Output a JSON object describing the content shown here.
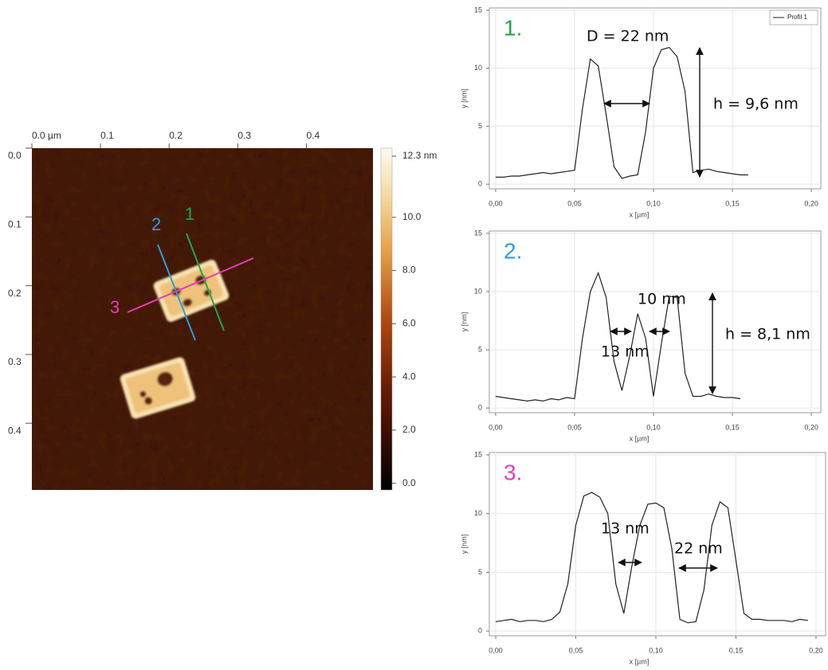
{
  "chart_data": [
    {
      "type": "image",
      "xlim": [
        0,
        0.497
      ],
      "ylim": [
        0,
        0.497
      ],
      "xticks": [
        {
          "value": 0,
          "label": "0.0 µm"
        },
        0.1,
        0.2,
        0.3,
        0.4
      ],
      "yticks": [
        {
          "value": 0,
          "label": "0.0"
        },
        0.1,
        0.2,
        0.3,
        0.4
      ],
      "annotations": [
        "1",
        "2",
        "3"
      ],
      "line_colors": [
        "#1fa64a",
        "#2a9fd8",
        "#e83cb4"
      ],
      "colorbar": {
        "lim": [
          -0.25,
          12.6
        ],
        "ticks": [
          {
            "value": 0,
            "label": "0.0"
          },
          {
            "value": 2,
            "label": "2.0"
          },
          {
            "value": 4,
            "label": "4.0"
          },
          {
            "value": 6,
            "label": "6.0"
          },
          {
            "value": 8,
            "label": "8.0"
          },
          {
            "value": 10,
            "label": "10.0"
          },
          {
            "value": 12.3,
            "label": "12.3 nm"
          }
        ]
      }
    },
    {
      "type": "line",
      "title": "1.",
      "title_color": "#1fa64a",
      "xlabel": "x [µm]",
      "ylabel": "y [nm]",
      "x": [
        0,
        0.005,
        0.01,
        0.015,
        0.02,
        0.025,
        0.03,
        0.035,
        0.04,
        0.045,
        0.05,
        0.055,
        0.06,
        0.065,
        0.07,
        0.075,
        0.08,
        0.085,
        0.09,
        0.095,
        0.1,
        0.105,
        0.11,
        0.115,
        0.12,
        0.125,
        0.13,
        0.135,
        0.14,
        0.145,
        0.15,
        0.155,
        0.16
      ],
      "series": [
        {
          "name": "Profil 1",
          "color": "#222222",
          "values": [
            0.6,
            0.6,
            0.7,
            0.7,
            0.8,
            0.9,
            1.0,
            0.9,
            1.0,
            1.1,
            1.2,
            6.5,
            10.8,
            10.2,
            6.0,
            1.5,
            0.5,
            0.7,
            0.8,
            4.5,
            10.0,
            11.6,
            11.8,
            11.0,
            8.0,
            1.0,
            1.2,
            1.3,
            1.1,
            1.0,
            0.9,
            0.8,
            0.8
          ]
        }
      ],
      "xlim": [
        -0.004,
        0.206
      ],
      "ylim": [
        -0.4,
        15.2
      ],
      "xticks": [
        {
          "value": 0,
          "label": "0,00"
        },
        {
          "value": 0.05,
          "label": "0,05"
        },
        {
          "value": 0.1,
          "label": "0,10"
        },
        {
          "value": 0.15,
          "label": "0,15"
        },
        {
          "value": 0.2,
          "label": "0,20"
        }
      ],
      "yticks": [
        0,
        5,
        10,
        15
      ],
      "grid": true,
      "legend": "upper right",
      "annotations": [
        "D = 22 nm",
        "h = 9,6 nm"
      ]
    },
    {
      "type": "line",
      "title": "2.",
      "title_color": "#2a9fd8",
      "xlabel": "x [µm]",
      "ylabel": "y [nm]",
      "x": [
        0,
        0.005,
        0.01,
        0.015,
        0.02,
        0.025,
        0.03,
        0.035,
        0.04,
        0.045,
        0.05,
        0.055,
        0.06,
        0.065,
        0.07,
        0.075,
        0.08,
        0.085,
        0.09,
        0.095,
        0.1,
        0.105,
        0.11,
        0.115,
        0.12,
        0.125,
        0.13,
        0.135,
        0.14,
        0.145,
        0.15,
        0.155
      ],
      "series": [
        {
          "color": "#222222",
          "values": [
            1.0,
            0.9,
            0.8,
            0.7,
            0.6,
            0.7,
            0.6,
            0.8,
            0.7,
            0.9,
            0.8,
            6.0,
            10.0,
            11.6,
            9.5,
            4.0,
            1.5,
            4.5,
            8.1,
            6.0,
            1.0,
            5.5,
            9.6,
            9.5,
            3.0,
            1.0,
            1.0,
            1.2,
            1.0,
            0.9,
            0.9,
            0.8
          ]
        }
      ],
      "xlim": [
        -0.004,
        0.206
      ],
      "ylim": [
        -0.4,
        15.2
      ],
      "xticks": [
        {
          "value": 0,
          "label": "0,00"
        },
        {
          "value": 0.05,
          "label": "0,05"
        },
        {
          "value": 0.1,
          "label": "0,10"
        },
        {
          "value": 0.15,
          "label": "0,15"
        },
        {
          "value": 0.2,
          "label": "0,20"
        }
      ],
      "yticks": [
        0,
        5,
        10,
        15
      ],
      "grid": true,
      "annotations": [
        "10 nm",
        "13 nm",
        "h = 8,1 nm"
      ]
    },
    {
      "type": "line",
      "title": "3.",
      "title_color": "#e83cb4",
      "xlabel": "x [µm]",
      "ylabel": "y [nm]",
      "x": [
        0,
        0.005,
        0.01,
        0.015,
        0.02,
        0.025,
        0.03,
        0.035,
        0.04,
        0.045,
        0.05,
        0.055,
        0.06,
        0.065,
        0.07,
        0.075,
        0.08,
        0.085,
        0.09,
        0.095,
        0.1,
        0.105,
        0.11,
        0.115,
        0.12,
        0.125,
        0.13,
        0.135,
        0.14,
        0.145,
        0.15,
        0.155,
        0.16,
        0.165,
        0.17,
        0.175,
        0.18,
        0.185,
        0.19,
        0.195
      ],
      "series": [
        {
          "color": "#222222",
          "values": [
            0.8,
            0.9,
            1.0,
            0.8,
            0.9,
            0.9,
            0.8,
            1.0,
            1.6,
            4.0,
            9.0,
            11.5,
            11.8,
            11.4,
            10.0,
            4.0,
            1.5,
            5.5,
            9.0,
            10.8,
            10.9,
            10.5,
            7.0,
            1.0,
            0.7,
            0.8,
            3.5,
            9.0,
            11.0,
            10.5,
            6.0,
            1.5,
            1.0,
            1.0,
            0.9,
            0.9,
            0.9,
            0.8,
            1.0,
            0.9
          ]
        }
      ],
      "xlim": [
        -0.004,
        0.206
      ],
      "ylim": [
        -0.4,
        15.2
      ],
      "xticks": [
        {
          "value": 0,
          "label": "0,00"
        },
        {
          "value": 0.05,
          "label": "0,05"
        },
        {
          "value": 0.1,
          "label": "0,10"
        },
        {
          "value": 0.15,
          "label": "0,15"
        },
        {
          "value": 0.2,
          "label": "0,20"
        }
      ],
      "yticks": [
        0,
        5,
        10,
        15
      ],
      "grid": true,
      "annotations": [
        "13 nm",
        "22 nm"
      ]
    }
  ]
}
